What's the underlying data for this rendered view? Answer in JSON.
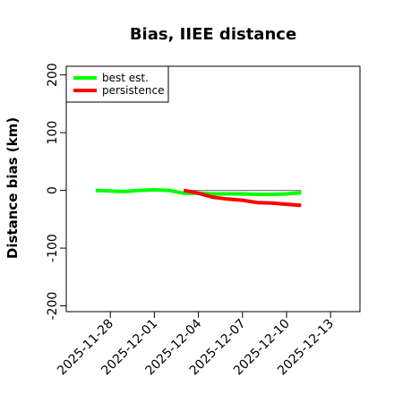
{
  "chart_data": {
    "type": "line",
    "title": "Bias, IIEE distance",
    "xlabel": "",
    "ylabel": "Distance bias (km)",
    "x_ticks": [
      "2025-11-28",
      "2025-12-01",
      "2025-12-04",
      "2025-12-07",
      "2025-12-10",
      "2025-12-13"
    ],
    "xlim": [
      "2025-11-25",
      "2025-12-15"
    ],
    "y_ticks": [
      -200,
      -100,
      0,
      100,
      200
    ],
    "ylim": [
      -210,
      215
    ],
    "grid": false,
    "legend_position": "top-left",
    "reference_line": {
      "y": 0,
      "x_range": [
        "2025-12-03",
        "2025-12-11"
      ],
      "color": "#808080"
    },
    "series": [
      {
        "name": "best est.",
        "color": "#00ff00",
        "points": [
          {
            "x": "2025-11-27",
            "y": 0
          },
          {
            "x": "2025-11-28",
            "y": -1
          },
          {
            "x": "2025-11-29",
            "y": -2
          },
          {
            "x": "2025-11-30",
            "y": 0
          },
          {
            "x": "2025-12-01",
            "y": 1
          },
          {
            "x": "2025-12-02",
            "y": 0
          },
          {
            "x": "2025-12-03",
            "y": -5
          },
          {
            "x": "2025-12-04",
            "y": -5
          },
          {
            "x": "2025-12-05",
            "y": -6
          },
          {
            "x": "2025-12-06",
            "y": -6
          },
          {
            "x": "2025-12-07",
            "y": -6
          },
          {
            "x": "2025-12-08",
            "y": -7
          },
          {
            "x": "2025-12-09",
            "y": -7
          },
          {
            "x": "2025-12-10",
            "y": -6
          },
          {
            "x": "2025-12-11",
            "y": -4
          }
        ]
      },
      {
        "name": "persistence",
        "color": "#ff0000",
        "points": [
          {
            "x": "2025-12-03",
            "y": 0
          },
          {
            "x": "2025-12-04",
            "y": -5
          },
          {
            "x": "2025-12-05",
            "y": -12
          },
          {
            "x": "2025-12-06",
            "y": -15
          },
          {
            "x": "2025-12-07",
            "y": -17
          },
          {
            "x": "2025-12-08",
            "y": -21
          },
          {
            "x": "2025-12-09",
            "y": -22
          },
          {
            "x": "2025-12-10",
            "y": -24
          },
          {
            "x": "2025-12-11",
            "y": -26
          }
        ]
      }
    ]
  }
}
